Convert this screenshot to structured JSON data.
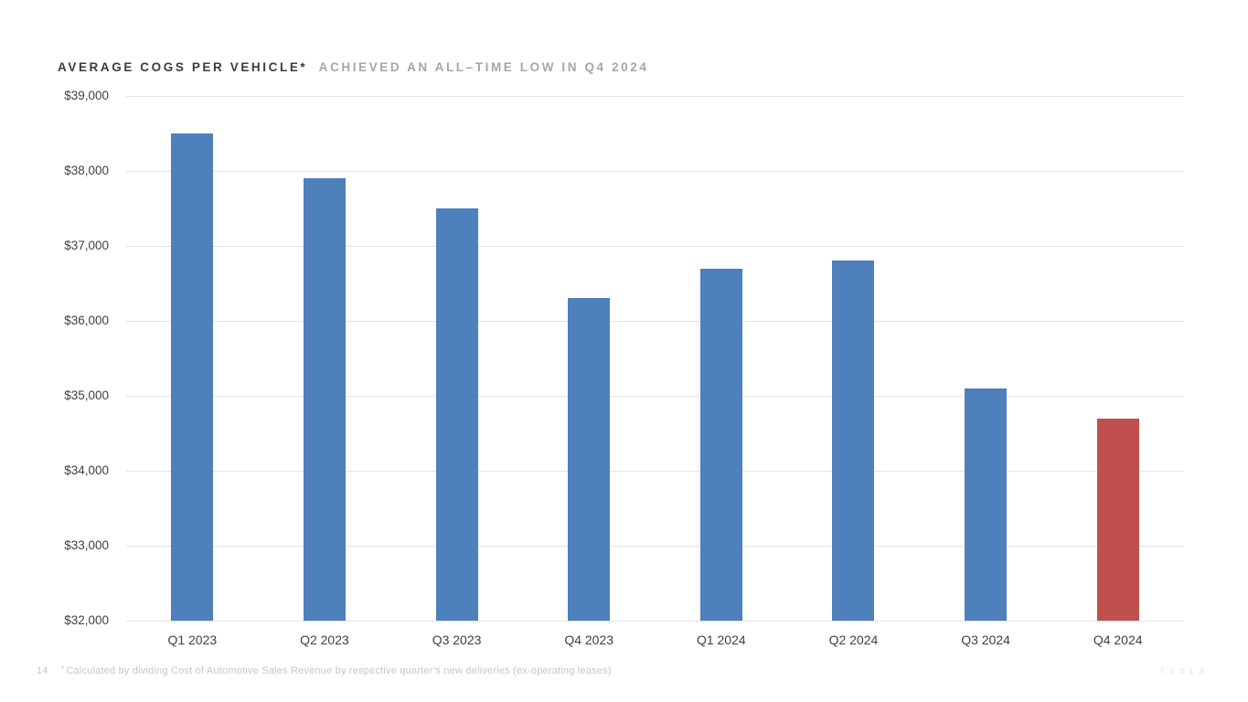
{
  "title": {
    "primary": "AVERAGE COGS PER VEHICLE*",
    "secondary": "ACHIEVED AN ALL–TIME LOW IN Q4 2024"
  },
  "footnote": {
    "page": "14",
    "marker": "*",
    "text": "Calculated by dividing Cost of Automotive Sales Revenue by respective quarter’s new deliveries (ex-operating leases)"
  },
  "brand": {
    "wordmark": "TESLA"
  },
  "chart_data": {
    "type": "bar",
    "title": "AVERAGE COGS PER VEHICLE* ACHIEVED AN ALL–TIME LOW IN Q4 2024",
    "categories": [
      "Q1 2023",
      "Q2 2023",
      "Q3 2023",
      "Q4 2023",
      "Q1 2024",
      "Q2 2024",
      "Q3 2024",
      "Q4 2024"
    ],
    "values": [
      38500,
      37900,
      37500,
      36300,
      36700,
      36800,
      35100,
      34700
    ],
    "xlabel": "",
    "ylabel": "",
    "ylim": [
      32000,
      39000
    ],
    "ytick_step": 1000,
    "ytick_labels": [
      "$39,000",
      "$38,000",
      "$37,000",
      "$36,000",
      "$35,000",
      "$34,000",
      "$33,000",
      "$32,000"
    ],
    "grid": true,
    "legend": "none",
    "bar_color": "#4e80bc",
    "highlight_color": "#c0504d",
    "highlight_index": 7,
    "gridline_color": "#e3e3e3"
  }
}
